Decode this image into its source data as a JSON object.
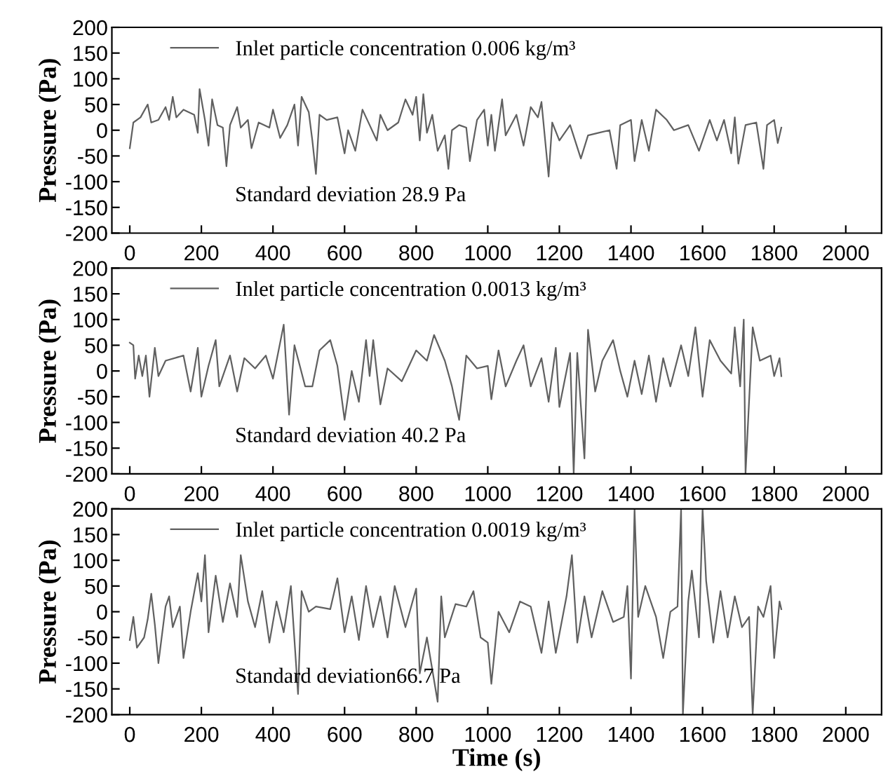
{
  "chart_data": [
    {
      "type": "line",
      "ylabel": "Pressure (Pa)",
      "xlim": [
        -50,
        2100
      ],
      "xticks": [
        0,
        200,
        400,
        600,
        800,
        1000,
        1200,
        1400,
        1600,
        1800,
        2000
      ],
      "ylim": [
        -200,
        200
      ],
      "yticks": [
        -200,
        -150,
        -100,
        -50,
        0,
        50,
        100,
        150,
        200
      ],
      "legend": "top left",
      "annotations": [
        "Standard deviation 28.9 Pa"
      ],
      "series": [
        {
          "name": "Inlet particle concentration 0.006 kg/m³",
          "color": "#606060",
          "x": [
            0,
            10,
            30,
            50,
            60,
            80,
            100,
            110,
            120,
            130,
            150,
            180,
            190,
            195,
            210,
            220,
            230,
            245,
            260,
            270,
            280,
            300,
            310,
            330,
            340,
            360,
            390,
            400,
            420,
            440,
            460,
            470,
            480,
            500,
            510,
            520,
            530,
            550,
            580,
            600,
            610,
            630,
            650,
            670,
            690,
            700,
            720,
            750,
            770,
            790,
            800,
            810,
            820,
            830,
            845,
            860,
            880,
            890,
            900,
            920,
            940,
            950,
            970,
            990,
            1000,
            1010,
            1020,
            1040,
            1050,
            1080,
            1100,
            1120,
            1140,
            1150,
            1170,
            1180,
            1200,
            1230,
            1260,
            1280,
            1310,
            1340,
            1360,
            1370,
            1400,
            1410,
            1430,
            1450,
            1470,
            1500,
            1520,
            1560,
            1590,
            1620,
            1640,
            1660,
            1680,
            1690,
            1700,
            1720,
            1750,
            1770,
            1780,
            1800,
            1810,
            1820
          ],
          "values": [
            -35,
            15,
            25,
            50,
            15,
            20,
            45,
            20,
            65,
            25,
            40,
            30,
            -5,
            80,
            20,
            -30,
            60,
            10,
            5,
            -70,
            10,
            45,
            5,
            20,
            -35,
            15,
            5,
            40,
            -15,
            10,
            50,
            -30,
            65,
            35,
            -20,
            -85,
            30,
            20,
            25,
            -45,
            0,
            -40,
            40,
            10,
            -20,
            30,
            0,
            15,
            60,
            30,
            65,
            -20,
            70,
            -5,
            30,
            -40,
            -10,
            -75,
            0,
            10,
            5,
            -60,
            20,
            40,
            -30,
            30,
            -40,
            60,
            -10,
            30,
            -30,
            45,
            25,
            55,
            -90,
            15,
            -20,
            10,
            -55,
            -10,
            -5,
            0,
            -75,
            10,
            20,
            -60,
            20,
            -40,
            40,
            20,
            0,
            10,
            -40,
            20,
            -20,
            20,
            -45,
            25,
            -65,
            10,
            15,
            -75,
            10,
            20,
            -25,
            5
          ]
        }
      ]
    },
    {
      "type": "line",
      "ylabel": "Pressure (Pa)",
      "xlim": [
        -50,
        2100
      ],
      "xticks": [
        0,
        200,
        400,
        600,
        800,
        1000,
        1200,
        1400,
        1600,
        1800,
        2000
      ],
      "ylim": [
        -200,
        200
      ],
      "yticks": [
        -200,
        -150,
        -100,
        -50,
        0,
        50,
        100,
        150,
        200
      ],
      "legend": "top left",
      "annotations": [
        "Standard deviation 40.2 Pa"
      ],
      "series": [
        {
          "name": "Inlet particle concentration 0.0013 kg/m³",
          "color": "#606060",
          "x": [
            0,
            10,
            15,
            25,
            35,
            45,
            55,
            70,
            80,
            100,
            150,
            170,
            190,
            200,
            220,
            240,
            250,
            280,
            300,
            320,
            350,
            380,
            400,
            430,
            445,
            460,
            490,
            510,
            530,
            560,
            580,
            600,
            620,
            640,
            660,
            670,
            680,
            700,
            720,
            760,
            800,
            830,
            850,
            880,
            900,
            920,
            940,
            970,
            1000,
            1010,
            1030,
            1050,
            1080,
            1100,
            1120,
            1150,
            1170,
            1190,
            1200,
            1230,
            1240,
            1250,
            1270,
            1280,
            1300,
            1320,
            1350,
            1370,
            1390,
            1410,
            1430,
            1450,
            1470,
            1490,
            1510,
            1540,
            1560,
            1580,
            1600,
            1620,
            1650,
            1680,
            1690,
            1705,
            1715,
            1720,
            1740,
            1760,
            1790,
            1800,
            1815,
            1820
          ],
          "values": [
            55,
            50,
            -15,
            30,
            -10,
            30,
            -50,
            45,
            -10,
            20,
            30,
            -40,
            45,
            -50,
            10,
            60,
            -30,
            30,
            -40,
            25,
            5,
            30,
            -15,
            90,
            -85,
            50,
            -30,
            -30,
            40,
            60,
            10,
            -95,
            0,
            -60,
            60,
            -10,
            60,
            -65,
            5,
            -20,
            40,
            20,
            70,
            20,
            -30,
            -95,
            30,
            5,
            10,
            -55,
            40,
            -30,
            20,
            50,
            -30,
            25,
            -60,
            45,
            -70,
            35,
            -200,
            35,
            -170,
            80,
            -40,
            20,
            60,
            0,
            -50,
            20,
            -45,
            30,
            -60,
            25,
            -30,
            50,
            -10,
            85,
            -50,
            60,
            20,
            -5,
            85,
            -30,
            100,
            -200,
            85,
            20,
            30,
            -10,
            25,
            -10
          ]
        }
      ]
    },
    {
      "type": "line",
      "ylabel": "Pressure (Pa)",
      "xlabel": "Time (s)",
      "xlim": [
        -50,
        2100
      ],
      "xticks": [
        0,
        200,
        400,
        600,
        800,
        1000,
        1200,
        1400,
        1600,
        1800,
        2000
      ],
      "ylim": [
        -200,
        200
      ],
      "yticks": [
        -200,
        -150,
        -100,
        -50,
        0,
        50,
        100,
        150,
        200
      ],
      "legend": "top left",
      "annotations": [
        "Standard deviation66.7 Pa"
      ],
      "series": [
        {
          "name": "Inlet particle concentration 0.0019 kg/m³",
          "color": "#606060",
          "x": [
            0,
            10,
            20,
            40,
            50,
            60,
            70,
            80,
            100,
            110,
            120,
            140,
            150,
            170,
            190,
            200,
            210,
            220,
            240,
            260,
            280,
            300,
            310,
            330,
            350,
            370,
            390,
            410,
            430,
            450,
            470,
            480,
            500,
            520,
            560,
            580,
            600,
            620,
            640,
            660,
            680,
            700,
            720,
            740,
            770,
            800,
            810,
            830,
            860,
            870,
            880,
            910,
            940,
            960,
            980,
            1000,
            1010,
            1030,
            1060,
            1090,
            1120,
            1150,
            1170,
            1190,
            1220,
            1235,
            1250,
            1270,
            1290,
            1320,
            1350,
            1380,
            1390,
            1400,
            1410,
            1420,
            1440,
            1470,
            1490,
            1510,
            1530,
            1540,
            1545,
            1560,
            1570,
            1590,
            1600,
            1610,
            1630,
            1650,
            1670,
            1690,
            1710,
            1730,
            1740,
            1755,
            1770,
            1790,
            1800,
            1815,
            1820
          ],
          "values": [
            -55,
            -10,
            -70,
            -50,
            -15,
            35,
            -25,
            -100,
            10,
            30,
            -30,
            10,
            -90,
            0,
            75,
            20,
            110,
            -40,
            70,
            -20,
            55,
            -10,
            110,
            20,
            -30,
            40,
            -60,
            20,
            -40,
            50,
            -160,
            40,
            0,
            10,
            5,
            65,
            -40,
            30,
            -55,
            50,
            -30,
            30,
            -50,
            50,
            -30,
            45,
            -120,
            -50,
            -175,
            30,
            -50,
            15,
            10,
            40,
            -50,
            -60,
            -140,
            0,
            -40,
            20,
            10,
            -80,
            20,
            -80,
            30,
            110,
            -60,
            30,
            -50,
            40,
            -20,
            -10,
            50,
            -130,
            200,
            -10,
            50,
            -10,
            -90,
            0,
            10,
            200,
            -200,
            20,
            80,
            -50,
            200,
            60,
            -60,
            40,
            -50,
            30,
            -30,
            -10,
            -200,
            10,
            -10,
            50,
            -90,
            20,
            5
          ]
        }
      ]
    }
  ]
}
